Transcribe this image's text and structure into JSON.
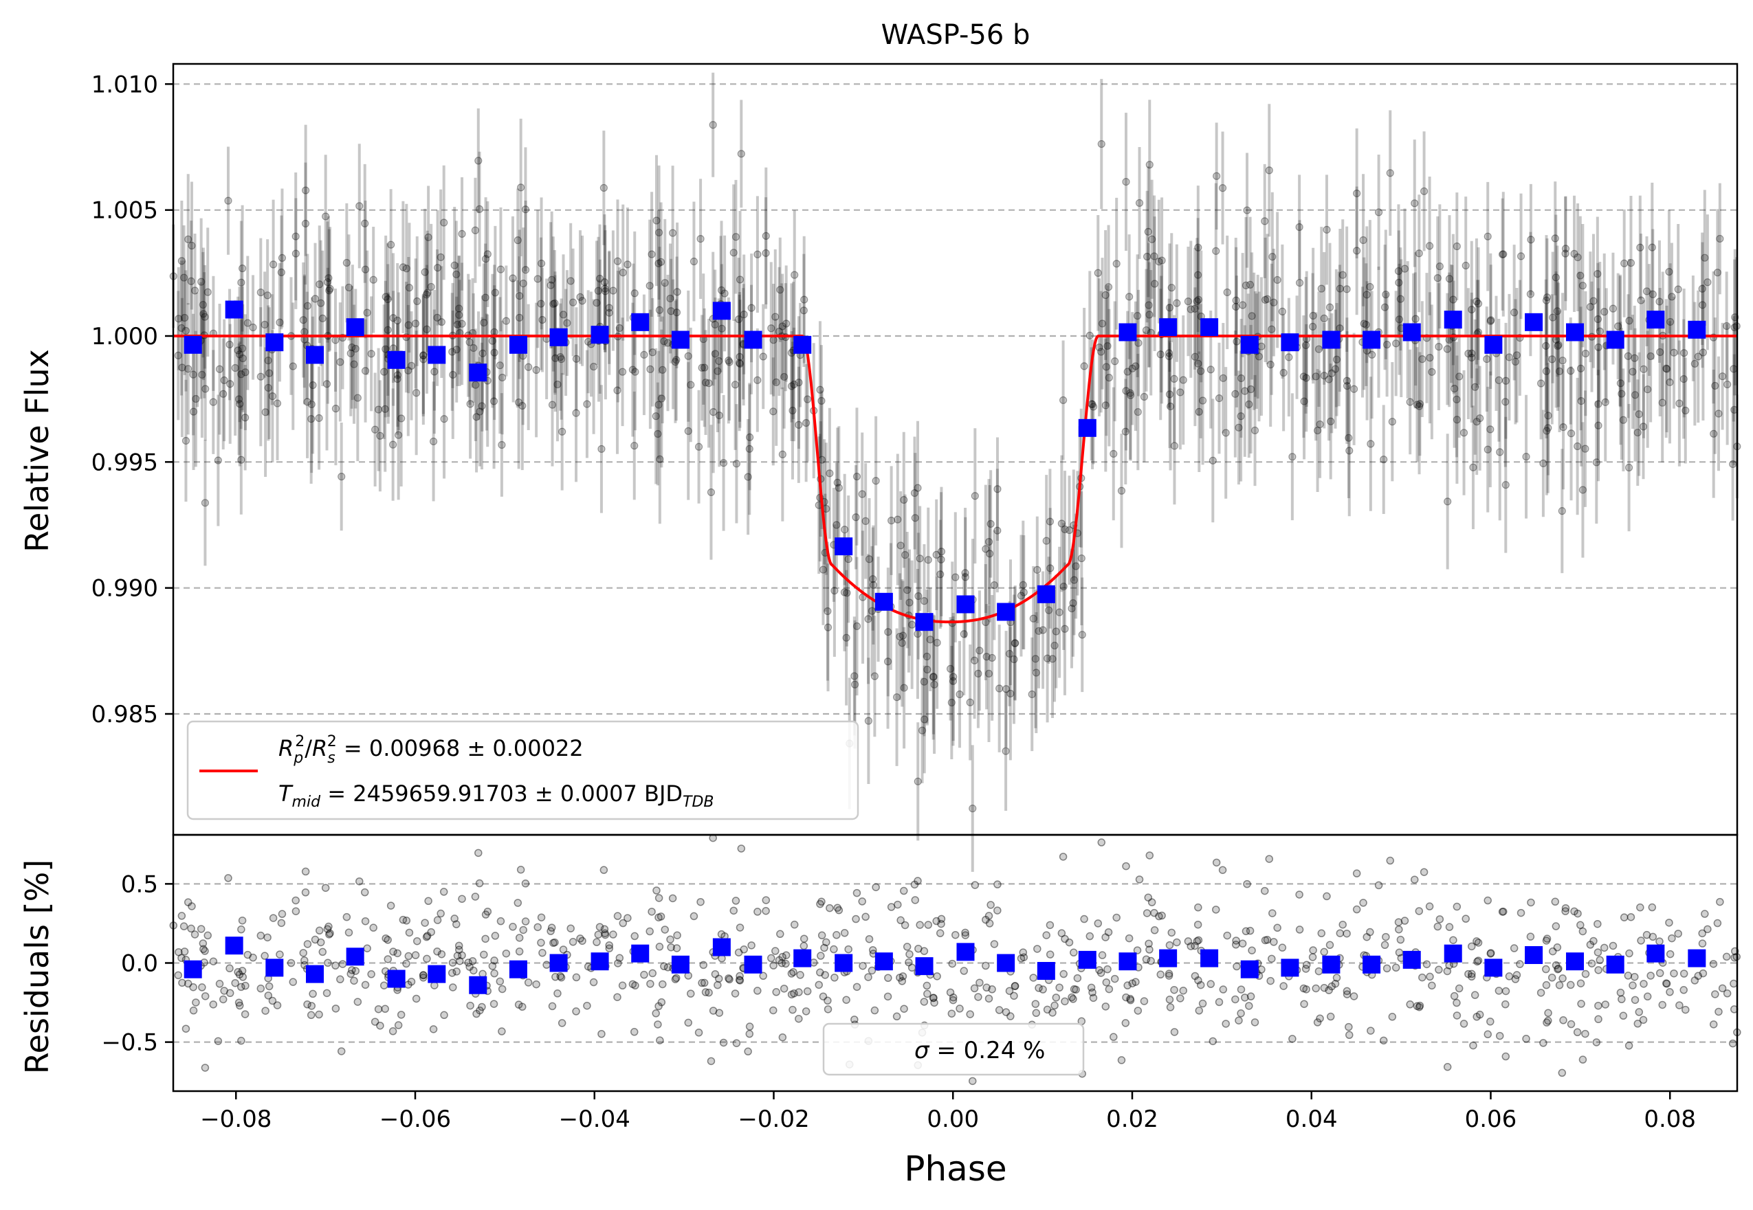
{
  "chart_data": [
    {
      "type": "scatter",
      "panel": "light-curve",
      "title": "WASP-56 b",
      "xlabel": "",
      "ylabel": "Relative Flux",
      "xlim": [
        -0.087,
        0.0875
      ],
      "ylim": [
        0.9802,
        1.0108
      ],
      "yticks": [
        0.985,
        0.99,
        0.995,
        1.0,
        1.005,
        1.01
      ],
      "ytick_labels": [
        "0.985",
        "0.990",
        "0.995",
        "1.000",
        "1.005",
        "1.010"
      ],
      "grid": "horizontal dashed",
      "colors": {
        "raw": "#000000",
        "binned": "#0000ff",
        "model": "#ff0000",
        "grid": "#b0b0b0"
      },
      "model": {
        "name": "transit model",
        "baseline": 1.0,
        "depth_center": 0.98865,
        "t1": -0.0168,
        "t2": -0.0135,
        "t3": 0.0128,
        "t4": 0.0162
      },
      "raw_points": {
        "count": 900,
        "scatter_sigma": 0.0024,
        "errorbar": 0.0024
      },
      "binned": {
        "x": [
          -0.0848,
          -0.0802,
          -0.0757,
          -0.0712,
          -0.0667,
          -0.0621,
          -0.0576,
          -0.053,
          -0.0485,
          -0.044,
          -0.0394,
          -0.0349,
          -0.0304,
          -0.0258,
          -0.0223,
          -0.0168,
          -0.0122,
          -0.0077,
          -0.0032,
          0.0014,
          0.0059,
          0.0104,
          0.015,
          0.0195,
          0.024,
          0.0286,
          0.0331,
          0.0376,
          0.0422,
          0.0467,
          0.0512,
          0.0558,
          0.0603,
          0.0648,
          0.0694,
          0.0739,
          0.0784,
          0.083
        ],
        "y": [
          0.99965,
          1.00105,
          0.99975,
          0.99925,
          1.00035,
          0.99905,
          0.99925,
          0.99855,
          0.99965,
          0.99995,
          1.00005,
          1.00055,
          0.99985,
          1.001,
          0.99985,
          0.99965,
          0.99165,
          0.98945,
          0.98865,
          0.98935,
          0.98905,
          0.98975,
          0.99635,
          1.00015,
          1.00035,
          1.00035,
          0.99965,
          0.99975,
          0.99985,
          0.99985,
          1.00015,
          1.00065,
          0.99965,
          1.00055,
          1.00015,
          0.99985,
          1.00065,
          1.00025
        ]
      },
      "legend": {
        "placement": "lower-left",
        "entry_1": "R_p^2/R_s^2 = 0.00968 ± 0.00022",
        "entry_2": "T_mid = 2459659.91703 ± 0.0007 BJD_TDB"
      }
    },
    {
      "type": "scatter",
      "panel": "residuals",
      "xlabel": "Phase",
      "ylabel": "Residuals [%]",
      "xlim": [
        -0.087,
        0.0875
      ],
      "ylim": [
        -0.81,
        0.81
      ],
      "xticks": [
        -0.08,
        -0.06,
        -0.04,
        -0.02,
        0.0,
        0.02,
        0.04,
        0.06,
        0.08
      ],
      "xtick_labels": [
        "−0.08",
        "−0.06",
        "−0.04",
        "−0.02",
        "0.00",
        "0.02",
        "0.04",
        "0.06",
        "0.08"
      ],
      "yticks": [
        -0.5,
        0.0,
        0.5
      ],
      "ytick_labels": [
        "−0.5",
        "0.0",
        "0.5"
      ],
      "grid": "horizontal dashed",
      "binned_y": [
        -0.04,
        0.11,
        -0.03,
        -0.07,
        0.04,
        -0.1,
        -0.07,
        -0.14,
        -0.04,
        0.0,
        0.01,
        0.06,
        -0.01,
        0.1,
        -0.01,
        0.03,
        0.0,
        0.01,
        -0.02,
        0.07,
        0.0,
        -0.05,
        0.02,
        0.01,
        0.03,
        0.03,
        -0.04,
        -0.03,
        -0.01,
        -0.01,
        0.02,
        0.06,
        -0.03,
        0.05,
        0.01,
        -0.01,
        0.06,
        0.03
      ],
      "legend": {
        "placement": "lower-center",
        "entry_1": "σ = 0.24 %"
      }
    }
  ],
  "legend_text": {
    "rp": {
      "R": "R",
      "sub_p": "p",
      "sup_2a": "2",
      "slash": "/",
      "R2": "R",
      "sub_s": "s",
      "sup_2b": "2",
      "rest": " = 0.00968 ± 0.00022"
    },
    "tmid": {
      "T": "T",
      "sub_mid": "mid",
      "rest": " = 2459659.91703 ± 0.0007 BJD",
      "sub_tdb": "TDB"
    },
    "sigma": {
      "sym": "σ",
      "rest": " = 0.24 %"
    }
  }
}
